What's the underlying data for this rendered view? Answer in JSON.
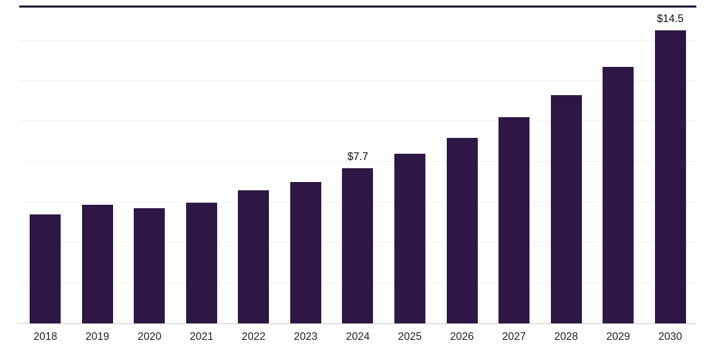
{
  "chart_data": {
    "type": "bar",
    "title": "",
    "xlabel": "",
    "ylabel": "",
    "categories": [
      "2018",
      "2019",
      "2020",
      "2021",
      "2022",
      "2023",
      "2024",
      "2025",
      "2026",
      "2027",
      "2028",
      "2029",
      "2030"
    ],
    "values": [
      5.4,
      5.9,
      5.7,
      6.0,
      6.6,
      7.0,
      7.7,
      8.4,
      9.2,
      10.2,
      11.3,
      12.7,
      14.5
    ],
    "data_labels": [
      "",
      "",
      "",
      "",
      "",
      "",
      "$7.7",
      "",
      "",
      "",
      "",
      "",
      "$14.5"
    ],
    "ylim": [
      0,
      15.65
    ],
    "gridline_values": [
      2,
      4,
      6,
      8,
      10,
      12,
      14
    ],
    "grid": "on",
    "legend": "none",
    "colors": {
      "bar": "#2e1745",
      "top_border": "#241634",
      "gridline": "#f0f0f0",
      "axis_line": "#cccccc",
      "tick_label": "#222222",
      "data_label": "#111111",
      "background": "#ffffff"
    }
  }
}
